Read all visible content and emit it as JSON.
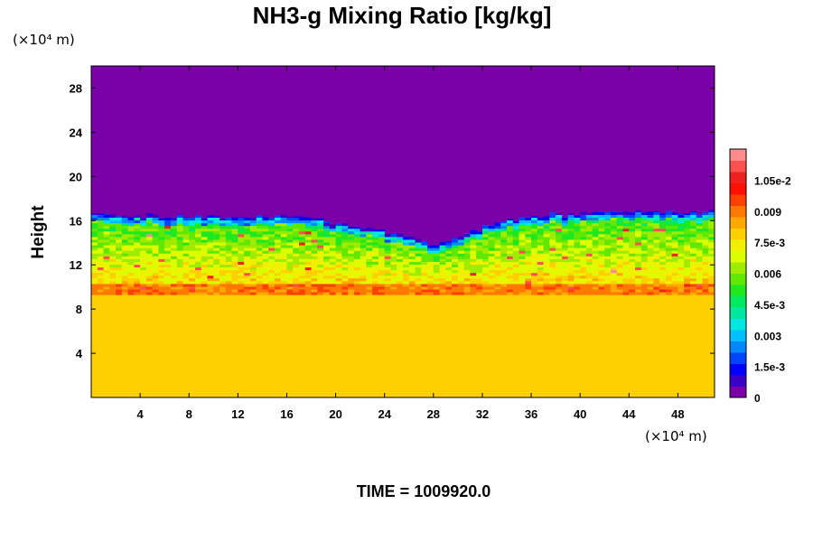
{
  "chart_data": {
    "type": "heatmap",
    "title": "NH3-g Mixing Ratio [kg/kg]",
    "ylabel": "Height",
    "x_units": "(×10⁴ m)",
    "y_units": "(×10⁴ m)",
    "footer": "TIME = 1009920.0",
    "xlim": [
      0,
      51
    ],
    "ylim": [
      0,
      30
    ],
    "x_ticks": [
      4,
      8,
      12,
      16,
      20,
      24,
      28,
      32,
      36,
      40,
      44,
      48
    ],
    "x_tick_labels": [
      "4",
      "8",
      "12",
      "16",
      "20",
      "24",
      "28",
      "32",
      "36",
      "40",
      "44",
      "48"
    ],
    "y_ticks": [
      4,
      8,
      12,
      16,
      20,
      24,
      28
    ],
    "y_tick_labels": [
      "4",
      "8",
      "12",
      "16",
      "20",
      "24",
      "28"
    ],
    "colorbar": {
      "range": [
        0,
        0.012
      ],
      "ticks": [
        0,
        0.0015,
        0.003,
        0.0045,
        0.006,
        0.0075,
        0.009,
        0.0105
      ],
      "tick_labels": [
        "0",
        "1.5e-3",
        "0.003",
        "4.5e-3",
        "0.006",
        "7.5e-3",
        "0.009",
        "1.05e-2"
      ],
      "colors": [
        "#7a00a8",
        "#3a00c8",
        "#0000ff",
        "#0044ff",
        "#0088ff",
        "#00c0ff",
        "#00e8e0",
        "#00e8a0",
        "#00e860",
        "#20e820",
        "#60e800",
        "#a0ec00",
        "#dcff00",
        "#f0f000",
        "#ffd000",
        "#ffa800",
        "#ff7800",
        "#ff4000",
        "#ff1000",
        "#ee2020",
        "#ff5050",
        "#ff8c8c"
      ]
    },
    "profile": {
      "description_free": true,
      "x": [
        0,
        4,
        8,
        12,
        16,
        20,
        24,
        28,
        32,
        36,
        40,
        44,
        48,
        51
      ],
      "top_height": [
        16.6,
        16.5,
        16.3,
        16.2,
        16.4,
        15.8,
        15.0,
        13.8,
        15.4,
        16.5,
        16.6,
        16.7,
        16.8,
        16.8
      ],
      "uniform_below": 9.3,
      "uniform_value": 0.0078,
      "background_value": 0
    }
  }
}
